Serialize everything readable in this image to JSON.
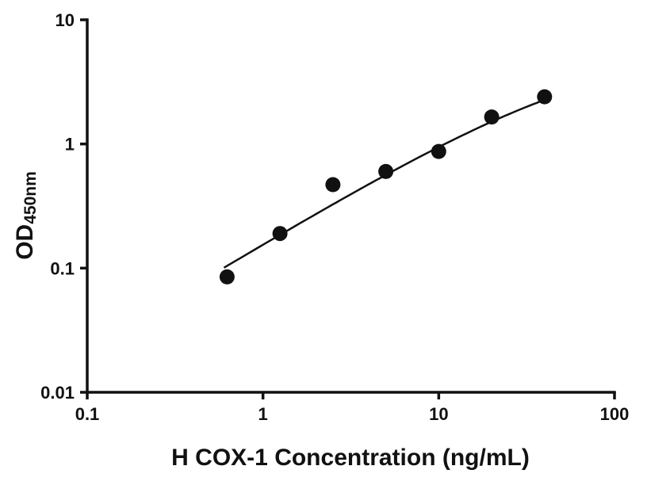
{
  "chart_data": {
    "type": "scatter",
    "title": "",
    "xlabel": "H COX-1 Concentration (ng/mL)",
    "ylabel": "OD",
    "ylabel_subscript": "450nm",
    "x_scale": "log",
    "y_scale": "log",
    "xlim": [
      0.1,
      100
    ],
    "ylim": [
      0.01,
      10
    ],
    "x_ticks": [
      0.1,
      1,
      10,
      100
    ],
    "x_tick_labels": [
      "0.1",
      "1",
      "10",
      "100"
    ],
    "y_ticks": [
      0.01,
      0.1,
      1,
      10
    ],
    "y_tick_labels": [
      "0.01",
      "0.1",
      "1",
      "10"
    ],
    "points": [
      {
        "x": 0.625,
        "y": 0.085
      },
      {
        "x": 1.25,
        "y": 0.19
      },
      {
        "x": 2.5,
        "y": 0.47
      },
      {
        "x": 5,
        "y": 0.6
      },
      {
        "x": 10,
        "y": 0.87
      },
      {
        "x": 20,
        "y": 1.65
      },
      {
        "x": 40,
        "y": 2.4
      }
    ],
    "fit_curve": {
      "type": "4PL",
      "bottom": 0,
      "top": 6,
      "ec50": 72,
      "hill": 0.85,
      "x_start": 0.6,
      "x_end": 40
    },
    "legend": null,
    "grid": false,
    "marker_color": "#111111",
    "line_color": "#111111",
    "axis_color": "#111111"
  }
}
